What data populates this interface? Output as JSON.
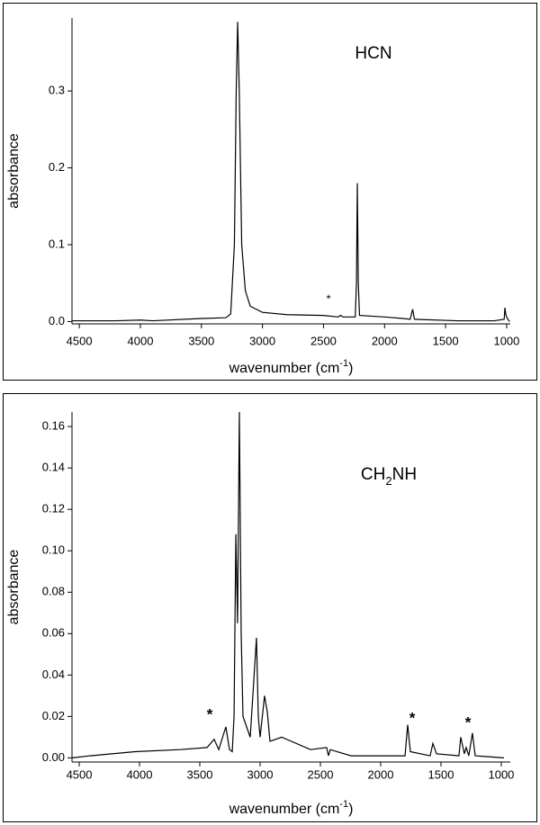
{
  "chart_data": [
    {
      "type": "line",
      "color": "#000000",
      "ylabel": "absorbance",
      "xlabel": [
        "wavenumber (cm",
        "-1",
        ")"
      ],
      "label": [
        "HCN"
      ],
      "markers": [
        "*"
      ],
      "xlim": [
        4560,
        970
      ],
      "ylim": [
        -0.003,
        0.395
      ],
      "xticks": [
        4500,
        4000,
        3500,
        3000,
        2500,
        2000,
        1500,
        1000
      ],
      "yticks": [
        {
          "value": 0,
          "label": "0.0"
        },
        0.1,
        0.2,
        0.3
      ],
      "x": [
        4560,
        4200,
        4000,
        3900,
        3500,
        3300,
        3260,
        3230,
        3215,
        3203,
        3190,
        3170,
        3140,
        3100,
        3000,
        2800,
        2500,
        2380,
        2360,
        2340,
        2240,
        2230,
        2223,
        2215,
        2205,
        2000,
        1850,
        1790,
        1770,
        1755,
        1400,
        1100,
        1020,
        1014,
        1005,
        990,
        975
      ],
      "values": [
        0.001,
        0.001,
        0.002,
        0.001,
        0.004,
        0.005,
        0.01,
        0.1,
        0.3,
        0.39,
        0.3,
        0.1,
        0.04,
        0.02,
        0.012,
        0.009,
        0.008,
        0.006,
        0.008,
        0.006,
        0.006,
        0.05,
        0.18,
        0.05,
        0.008,
        0.006,
        0.004,
        0.003,
        0.016,
        0.003,
        0.001,
        0.001,
        0.003,
        0.018,
        0.008,
        0.003,
        0.0
      ]
    },
    {
      "type": "line",
      "color": "#000000",
      "ylabel": "absorbance",
      "xlabel": [
        "wavenumber (cm",
        "-1",
        ")"
      ],
      "label": [
        "CH",
        "2",
        "NH"
      ],
      "markers": [
        "*",
        "*",
        "*"
      ],
      "xlim": [
        4560,
        925
      ],
      "ylim": [
        -0.002,
        0.167
      ],
      "xticks": [
        4500,
        4000,
        3500,
        3000,
        2500,
        2000,
        1500,
        1000
      ],
      "yticks": [
        {
          "value": 0,
          "label": "0.00"
        },
        {
          "value": 0.02,
          "label": "0.02"
        },
        {
          "value": 0.04,
          "label": "0.04"
        },
        {
          "value": 0.06,
          "label": "0.06"
        },
        {
          "value": 0.08,
          "label": "0.08"
        },
        {
          "value": 0.1,
          "label": "0.10"
        },
        {
          "value": 0.12,
          "label": "0.12"
        },
        {
          "value": 0.14,
          "label": "0.14"
        },
        {
          "value": 0.16,
          "label": "0.16"
        }
      ],
      "x": [
        4560,
        4410,
        4037,
        3664,
        3440,
        3381,
        3343,
        3284,
        3254,
        3231,
        3216,
        3201,
        3187,
        3172,
        3157,
        3142,
        3082,
        3030,
        3015,
        3000,
        2963,
        2940,
        2918,
        2821,
        2582,
        2448,
        2433,
        2418,
        2246,
        1798,
        1776,
        1754,
        1590,
        1567,
        1537,
        1351,
        1336,
        1306,
        1291,
        1269,
        1239,
        1216,
        1090,
        978
      ],
      "values": [
        0,
        0.001,
        0.003,
        0.004,
        0.005,
        0.009,
        0.004,
        0.015,
        0.004,
        0.003,
        0.02,
        0.108,
        0.065,
        0.167,
        0.06,
        0.02,
        0.01,
        0.058,
        0.02,
        0.01,
        0.03,
        0.022,
        0.008,
        0.01,
        0.004,
        0.005,
        0.001,
        0.004,
        0.001,
        0.001,
        0.016,
        0.003,
        0.001,
        0.007,
        0.002,
        0.001,
        0.01,
        0.002,
        0.005,
        0.001,
        0.012,
        0.001,
        0.0005,
        0
      ]
    }
  ]
}
